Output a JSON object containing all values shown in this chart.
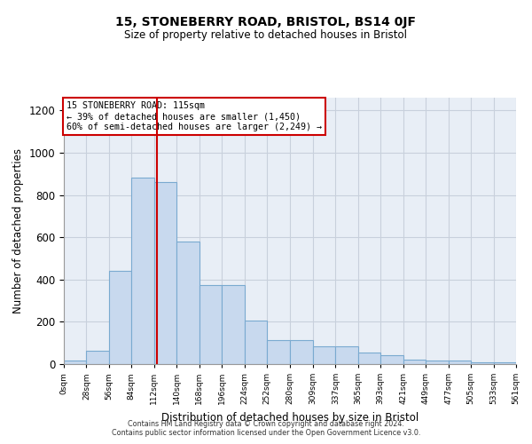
{
  "title1": "15, STONEBERRY ROAD, BRISTOL, BS14 0JF",
  "title2": "Size of property relative to detached houses in Bristol",
  "xlabel": "Distribution of detached houses by size in Bristol",
  "ylabel": "Number of detached properties",
  "bin_edges": [
    0,
    28,
    56,
    84,
    112,
    140,
    168,
    196,
    224,
    252,
    280,
    309,
    337,
    365,
    393,
    421,
    449,
    477,
    505,
    533,
    561
  ],
  "bar_heights": [
    15,
    65,
    440,
    880,
    860,
    580,
    375,
    375,
    205,
    115,
    115,
    85,
    85,
    55,
    40,
    22,
    18,
    18,
    10,
    8
  ],
  "bar_color": "#c8d9ee",
  "bar_edge_color": "#7aaad0",
  "property_size": 115,
  "annotation_text": "15 STONEBERRY ROAD: 115sqm\n← 39% of detached houses are smaller (1,450)\n60% of semi-detached houses are larger (2,249) →",
  "vline_color": "#cc0000",
  "annotation_box_edge_color": "#cc0000",
  "ylim": [
    0,
    1260
  ],
  "yticks": [
    0,
    200,
    400,
    600,
    800,
    1000,
    1200
  ],
  "grid_color": "#c8d0dc",
  "bg_color": "#e8eef6",
  "footer1": "Contains HM Land Registry data © Crown copyright and database right 2024.",
  "footer2": "Contains public sector information licensed under the Open Government Licence v3.0."
}
